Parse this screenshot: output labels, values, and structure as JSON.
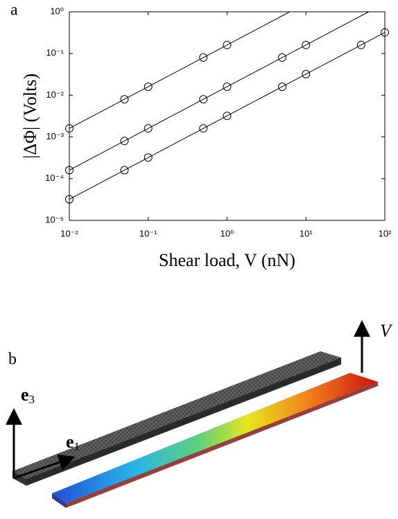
{
  "chart_data": {
    "type": "scatter",
    "panel_label": "a",
    "xlabel": "Shear load, V (nN)",
    "ylabel": "|ΔΦ| (Volts)",
    "xscale": "log",
    "yscale": "log",
    "xlim": [
      0.01,
      100
    ],
    "ylim": [
      1e-05,
      1
    ],
    "xticks": [
      {
        "value": 0.01,
        "label": "10⁻²"
      },
      {
        "value": 0.1,
        "label": "10⁻¹"
      },
      {
        "value": 1,
        "label": "10⁰"
      },
      {
        "value": 10,
        "label": "10¹"
      },
      {
        "value": 100,
        "label": "10²"
      }
    ],
    "yticks": [
      {
        "value": 1e-05,
        "label": "10⁻⁵"
      },
      {
        "value": 0.0001,
        "label": "10⁻⁴"
      },
      {
        "value": 0.001,
        "label": "10⁻³"
      },
      {
        "value": 0.01,
        "label": "10⁻²"
      },
      {
        "value": 0.1,
        "label": "10⁻¹"
      },
      {
        "value": 1,
        "label": "10⁰"
      }
    ],
    "color": "#000000",
    "series": [
      {
        "x": [
          0.01,
          0.05,
          0.1,
          0.5,
          1
        ],
        "values": [
          0.0016,
          0.008,
          0.016,
          0.08,
          0.16
        ]
      },
      {
        "x": [
          0.01,
          0.05,
          0.1,
          0.5,
          1,
          5,
          10
        ],
        "values": [
          0.00016,
          0.0008,
          0.0016,
          0.008,
          0.016,
          0.08,
          0.16
        ]
      },
      {
        "x": [
          0.01,
          0.05,
          0.1,
          0.5,
          1,
          5,
          10,
          50,
          100
        ],
        "values": [
          3.2e-05,
          0.00016,
          0.00032,
          0.0016,
          0.0032,
          0.016,
          0.032,
          0.16,
          0.32
        ]
      }
    ]
  },
  "diagram": {
    "panel_label": "b",
    "force_label": "V",
    "axis_e3": "e",
    "axis_e3_sub": "3",
    "axis_e1": "e",
    "axis_e1_sub": "1"
  }
}
